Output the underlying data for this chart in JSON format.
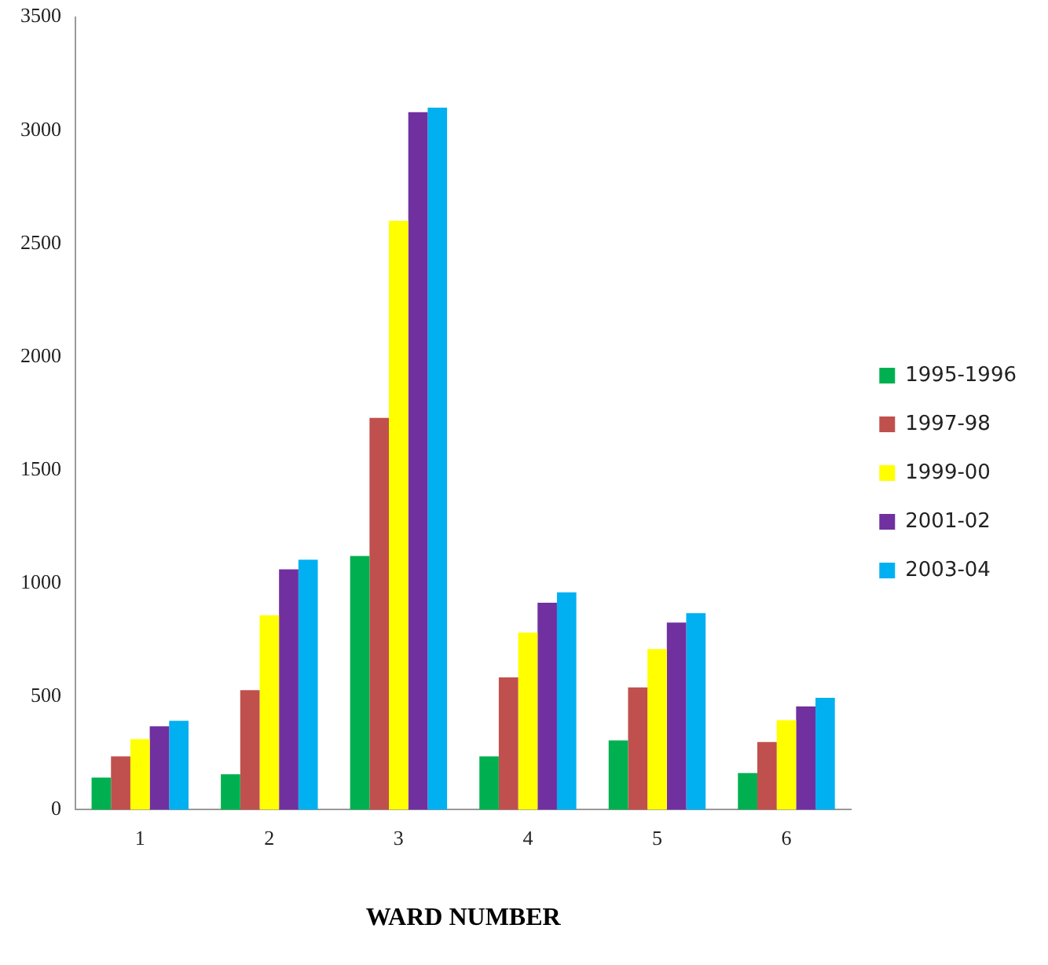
{
  "chart_data": {
    "type": "bar",
    "xlabel": "WARD NUMBER",
    "categories": [
      "1",
      "2",
      "3",
      "4",
      "5",
      "6"
    ],
    "series": [
      {
        "name": "1995-1996",
        "color": "#00b050",
        "values": [
          142,
          157,
          1120,
          236,
          306,
          162
        ]
      },
      {
        "name": "1997-98",
        "color": "#c0504d",
        "values": [
          236,
          528,
          1730,
          584,
          540,
          299
        ]
      },
      {
        "name": "1999-00",
        "color": "#ffff00",
        "values": [
          312,
          858,
          2600,
          782,
          709,
          395
        ]
      },
      {
        "name": "2001-02",
        "color": "#7030a0",
        "values": [
          368,
          1061,
          3080,
          914,
          826,
          456
        ]
      },
      {
        "name": "2003-04",
        "color": "#00b0f0",
        "values": [
          393,
          1104,
          3100,
          960,
          868,
          494
        ]
      }
    ],
    "ylim": [
      0,
      3500
    ],
    "yticks": [
      0,
      500,
      1000,
      1500,
      2000,
      2500,
      3000,
      3500
    ],
    "grid": false,
    "legend": "right"
  }
}
